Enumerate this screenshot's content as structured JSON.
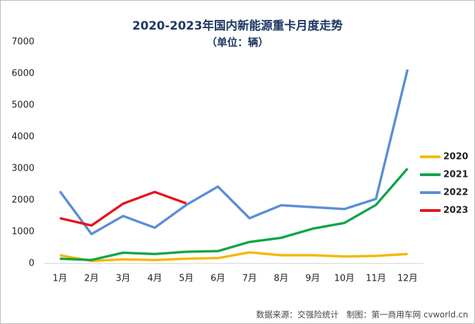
{
  "chart_data": {
    "type": "line",
    "title": "2020-2023年国内新能源重卡月度走势",
    "subtitle": "（单位：辆）",
    "source": "数据来源：交强险统计   制图：第一商用车网 cvworld.cn",
    "categories": [
      "1月",
      "2月",
      "3月",
      "4月",
      "5月",
      "6月",
      "7月",
      "8月",
      "9月",
      "10月",
      "11月",
      "12月"
    ],
    "series": [
      {
        "name": "2020",
        "color": "#f5b800",
        "values": [
          260,
          80,
          130,
          110,
          150,
          170,
          350,
          260,
          260,
          220,
          240,
          300
        ]
      },
      {
        "name": "2021",
        "color": "#12a54a",
        "values": [
          150,
          110,
          340,
          300,
          370,
          390,
          680,
          810,
          1100,
          1280,
          1850,
          3000
        ]
      },
      {
        "name": "2022",
        "color": "#5b8ed6",
        "values": [
          2280,
          930,
          1500,
          1130,
          1850,
          2430,
          1430,
          1840,
          1780,
          1720,
          2040,
          6130
        ]
      },
      {
        "name": "2023",
        "color": "#e8141b",
        "values": [
          1430,
          1200,
          1890,
          2260,
          1900,
          null,
          null,
          null,
          null,
          null,
          null,
          null
        ]
      }
    ],
    "ylim": [
      0,
      7000
    ],
    "yticks": [
      0,
      1000,
      2000,
      3000,
      4000,
      5000,
      6000,
      7000
    ],
    "legend": "right"
  }
}
